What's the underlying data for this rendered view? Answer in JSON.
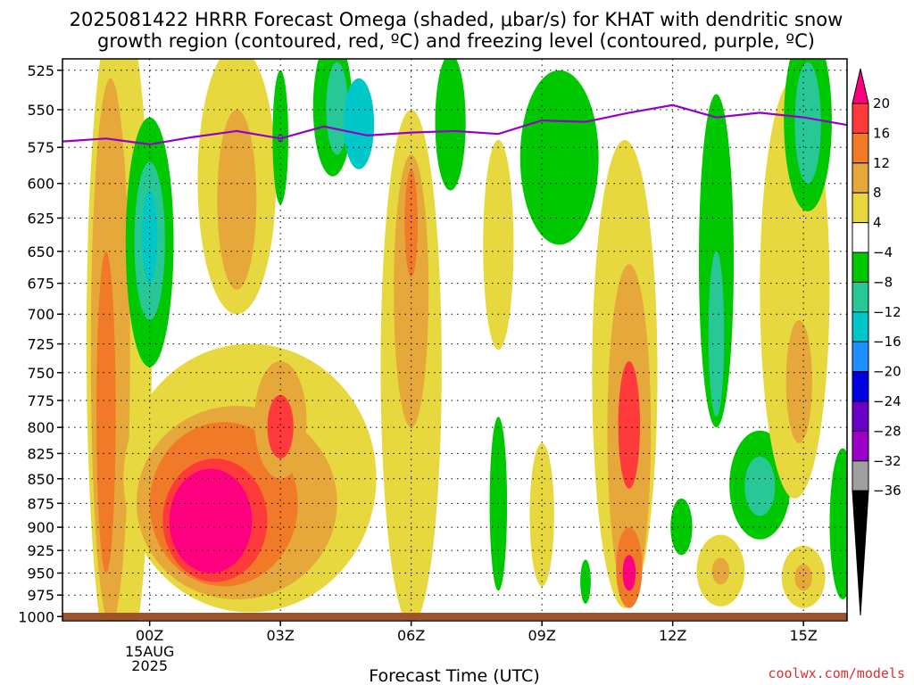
{
  "title_lines": [
    "2025081422 HRRR Forecast Omega (shaded, μbar/s) for KHAT with dendritic snow",
    "growth region (contoured, red, ºC) and freezing level (contoured, purple, ºC)"
  ],
  "credit": "coolwx.com/models",
  "chart_data": {
    "type": "heatmap",
    "title": "2025081422 HRRR Forecast Omega (shaded, μbar/s) for KHAT with dendritic snow growth region (contoured, red, ºC) and freezing level (contoured, purple, ºC)",
    "xlabel": "Forecast Time (UTC)",
    "ylabel": "",
    "y_scale": "log",
    "ylim": [
      1005,
      518
    ],
    "xlim": [
      -2,
      16
    ],
    "x_ticks": [
      {
        "x": 0,
        "label": "00Z",
        "sublabels": [
          "15AUG",
          "2025"
        ]
      },
      {
        "x": 3,
        "label": "03Z",
        "sublabels": []
      },
      {
        "x": 6,
        "label": "06Z",
        "sublabels": []
      },
      {
        "x": 9,
        "label": "09Z",
        "sublabels": []
      },
      {
        "x": 12,
        "label": "12Z",
        "sublabels": []
      },
      {
        "x": 15,
        "label": "15Z",
        "sublabels": []
      }
    ],
    "y_ticks": [
      525,
      550,
      575,
      600,
      625,
      650,
      675,
      700,
      725,
      750,
      775,
      800,
      825,
      850,
      875,
      900,
      925,
      950,
      975,
      1000
    ],
    "grid": true,
    "colorbar": {
      "labels": [
        "20",
        "16",
        "12",
        "8",
        "4",
        "−4",
        "−8",
        "−12",
        "−16",
        "−20",
        "−24",
        "−28",
        "−32",
        "−36"
      ],
      "boundaries": [
        20,
        16,
        12,
        8,
        4,
        -4,
        -8,
        -12,
        -16,
        -20,
        -24,
        -28,
        -32,
        -36
      ],
      "colors": [
        "#ff3a3a",
        "#f07a28",
        "#e6a83a",
        "#e8d840",
        "#ffffff",
        "#00c800",
        "#28c896",
        "#00c8c8",
        "#1e90ff",
        "#0000e0",
        "#6a00c8",
        "#9a00c8",
        "#a0a0a0"
      ],
      "top_color": "#ff0080",
      "bottom_color": "#000000"
    },
    "freezing_level": {
      "label": "0",
      "color": "#9400c8",
      "x": [
        -2,
        -1,
        0,
        1,
        2,
        3,
        4,
        5,
        6,
        7,
        8,
        9,
        10,
        11,
        12,
        13,
        14,
        15,
        16
      ],
      "y": [
        571,
        569,
        573,
        568,
        564,
        569,
        561,
        567,
        565,
        564,
        566,
        557,
        558,
        552,
        547,
        555,
        552,
        555,
        560
      ]
    },
    "omega_features": [
      {
        "x": -0.7,
        "p": 760,
        "rx": 0.75,
        "ry": 330,
        "level": "4"
      },
      {
        "x": -0.9,
        "p": 770,
        "rx": 0.45,
        "ry": 240,
        "level": "8"
      },
      {
        "x": -1.0,
        "p": 800,
        "rx": 0.22,
        "ry": 150,
        "level": "12"
      },
      {
        "x": 0.0,
        "p": 650,
        "rx": 0.55,
        "ry": 95,
        "level": "-4"
      },
      {
        "x": 0.0,
        "p": 645,
        "rx": 0.35,
        "ry": 60,
        "level": "-8"
      },
      {
        "x": 0.0,
        "p": 640,
        "rx": 0.18,
        "ry": 35,
        "level": "-12"
      },
      {
        "x": 2.3,
        "p": 860,
        "rx": 2.9,
        "ry": 135,
        "level": "4"
      },
      {
        "x": 2.0,
        "p": 880,
        "rx": 2.3,
        "ry": 100,
        "level": "8"
      },
      {
        "x": 1.7,
        "p": 880,
        "rx": 1.7,
        "ry": 85,
        "level": "12"
      },
      {
        "x": 1.5,
        "p": 895,
        "rx": 1.2,
        "ry": 65,
        "level": "16"
      },
      {
        "x": 1.4,
        "p": 895,
        "rx": 0.95,
        "ry": 55,
        "level": "20"
      },
      {
        "x": 2.0,
        "p": 605,
        "rx": 0.9,
        "ry": 95,
        "level": "4"
      },
      {
        "x": 2.0,
        "p": 615,
        "rx": 0.45,
        "ry": 65,
        "level": "8"
      },
      {
        "x": 3.0,
        "p": 795,
        "rx": 0.6,
        "ry": 55,
        "level": "8"
      },
      {
        "x": 3.0,
        "p": 800,
        "rx": 0.3,
        "ry": 30,
        "level": "16"
      },
      {
        "x": 3.0,
        "p": 570,
        "rx": 0.18,
        "ry": 45,
        "level": "-4"
      },
      {
        "x": 4.2,
        "p": 550,
        "rx": 0.45,
        "ry": 45,
        "level": "-4"
      },
      {
        "x": 4.3,
        "p": 550,
        "rx": 0.25,
        "ry": 30,
        "level": "-8"
      },
      {
        "x": 4.8,
        "p": 560,
        "rx": 0.35,
        "ry": 30,
        "level": "-12"
      },
      {
        "x": 6.0,
        "p": 780,
        "rx": 0.7,
        "ry": 230,
        "level": "4"
      },
      {
        "x": 6.0,
        "p": 690,
        "rx": 0.4,
        "ry": 110,
        "level": "8"
      },
      {
        "x": 6.0,
        "p": 630,
        "rx": 0.15,
        "ry": 40,
        "level": "12"
      },
      {
        "x": 6.9,
        "p": 560,
        "rx": 0.35,
        "ry": 45,
        "level": "-4"
      },
      {
        "x": 8.0,
        "p": 650,
        "rx": 0.35,
        "ry": 80,
        "level": "4"
      },
      {
        "x": 8.0,
        "p": 880,
        "rx": 0.2,
        "ry": 90,
        "level": "-4"
      },
      {
        "x": 9.4,
        "p": 585,
        "rx": 0.9,
        "ry": 60,
        "level": "-4"
      },
      {
        "x": 9.0,
        "p": 890,
        "rx": 0.28,
        "ry": 75,
        "level": "4"
      },
      {
        "x": 10.0,
        "p": 960,
        "rx": 0.12,
        "ry": 25,
        "level": "-4"
      },
      {
        "x": 10.9,
        "p": 780,
        "rx": 0.75,
        "ry": 210,
        "level": "4"
      },
      {
        "x": 11.0,
        "p": 820,
        "rx": 0.5,
        "ry": 160,
        "level": "8"
      },
      {
        "x": 11.0,
        "p": 800,
        "rx": 0.25,
        "ry": 60,
        "level": "16"
      },
      {
        "x": 11.0,
        "p": 945,
        "rx": 0.3,
        "ry": 45,
        "level": "12"
      },
      {
        "x": 11.0,
        "p": 950,
        "rx": 0.15,
        "ry": 20,
        "level": "20"
      },
      {
        "x": 13.0,
        "p": 670,
        "rx": 0.4,
        "ry": 130,
        "level": "-4"
      },
      {
        "x": 13.0,
        "p": 720,
        "rx": 0.18,
        "ry": 70,
        "level": "-8"
      },
      {
        "x": 12.2,
        "p": 900,
        "rx": 0.25,
        "ry": 30,
        "level": "-4"
      },
      {
        "x": 13.1,
        "p": 948,
        "rx": 0.55,
        "ry": 40,
        "level": "4"
      },
      {
        "x": 13.1,
        "p": 948,
        "rx": 0.2,
        "ry": 15,
        "level": "8"
      },
      {
        "x": 14.0,
        "p": 858,
        "rx": 0.7,
        "ry": 55,
        "level": "-4"
      },
      {
        "x": 14.0,
        "p": 858,
        "rx": 0.35,
        "ry": 30,
        "level": "-8"
      },
      {
        "x": 14.8,
        "p": 700,
        "rx": 0.8,
        "ry": 170,
        "level": "4"
      },
      {
        "x": 14.9,
        "p": 760,
        "rx": 0.3,
        "ry": 55,
        "level": "8"
      },
      {
        "x": 15.1,
        "p": 560,
        "rx": 0.55,
        "ry": 60,
        "level": "-4"
      },
      {
        "x": 15.1,
        "p": 560,
        "rx": 0.3,
        "ry": 40,
        "level": "-8"
      },
      {
        "x": 15.0,
        "p": 955,
        "rx": 0.5,
        "ry": 35,
        "level": "4"
      },
      {
        "x": 15.0,
        "p": 955,
        "rx": 0.2,
        "ry": 15,
        "level": "8"
      },
      {
        "x": 15.9,
        "p": 900,
        "rx": 0.3,
        "ry": 80,
        "level": "-4"
      }
    ]
  }
}
